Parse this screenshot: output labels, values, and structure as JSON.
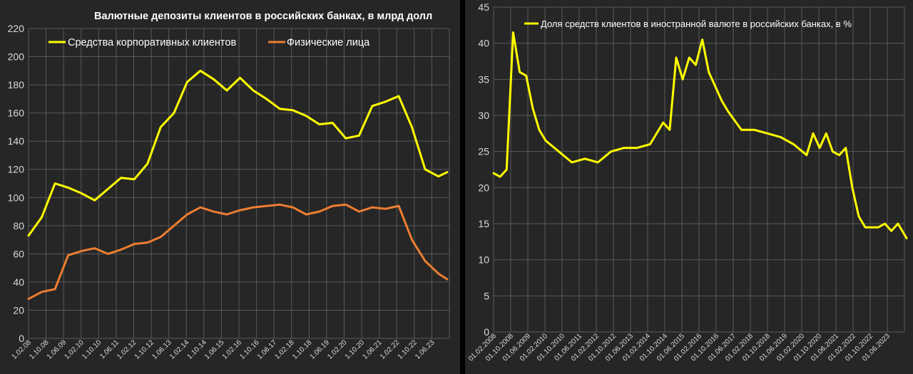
{
  "chart_data": [
    {
      "type": "line",
      "title": "Валютные депозиты клиентов в российских банках, в млрд долл",
      "xlabel": "",
      "ylabel": "",
      "ylim": [
        0,
        220
      ],
      "yticks": [
        0,
        20,
        40,
        60,
        80,
        100,
        120,
        140,
        160,
        180,
        200,
        220
      ],
      "x_tick_labels": [
        "1.02.08",
        "1.10.08",
        "1.06.09",
        "1.02.10",
        "1.10.10",
        "1.06.11",
        "1.02.12",
        "1.10.12",
        "1.06.13",
        "1.02.14",
        "1.10.14",
        "1.06.15",
        "1.02.16",
        "1.10.16",
        "1.06.17",
        "1.02.18",
        "1.10.18",
        "1.06.19",
        "1.02.20",
        "1.10.20",
        "1.06.21",
        "1.02.22",
        "1.10.22",
        "1.06.23"
      ],
      "grid": true,
      "legend_position": "top",
      "colors": {
        "corporate": "#ffff00",
        "individuals": "#ed7d31"
      },
      "x_points": [
        "01.2008",
        "07.2008",
        "01.2009",
        "07.2009",
        "01.2010",
        "07.2010",
        "01.2011",
        "07.2011",
        "01.2012",
        "07.2012",
        "01.2013",
        "07.2013",
        "01.2014",
        "07.2014",
        "01.2015",
        "07.2015",
        "01.2016",
        "07.2016",
        "01.2017",
        "07.2017",
        "01.2018",
        "07.2018",
        "01.2019",
        "07.2019",
        "01.2020",
        "07.2020",
        "01.2021",
        "07.2021",
        "01.2022",
        "07.2022",
        "01.2023",
        "07.2023",
        "11.2023"
      ],
      "series": [
        {
          "name": "Средства корпоративных клиентов",
          "values": [
            73,
            86,
            110,
            107,
            103,
            98,
            106,
            114,
            113,
            124,
            150,
            160,
            182,
            190,
            184,
            176,
            185,
            176,
            170,
            163,
            162,
            158,
            152,
            153,
            142,
            144,
            165,
            168,
            172,
            150,
            120,
            115,
            118
          ]
        },
        {
          "name": "Физические лица",
          "values": [
            28,
            33,
            35,
            59,
            62,
            64,
            60,
            63,
            67,
            68,
            72,
            80,
            88,
            93,
            90,
            88,
            91,
            93,
            94,
            95,
            93,
            88,
            90,
            94,
            95,
            90,
            93,
            92,
            94,
            70,
            55,
            46,
            42
          ]
        }
      ]
    },
    {
      "type": "line",
      "title": "",
      "xlabel": "",
      "ylabel": "",
      "ylim": [
        0,
        45
      ],
      "yticks": [
        0,
        5,
        10,
        15,
        20,
        25,
        30,
        35,
        40,
        45
      ],
      "x_tick_labels": [
        "01.02.2008",
        "01.10.2008",
        "01.06.2009",
        "01.02.2010",
        "01.10.2010",
        "01.06.2011",
        "01.02.2012",
        "01.10.2012",
        "01.06.2013",
        "01.02.2014",
        "01.10.2014",
        "01.06.2015",
        "01.02.2016",
        "01.10.2016",
        "01.06.2017",
        "01.02.2018",
        "01.10.2018",
        "01.06.2019",
        "01.02.2020",
        "01.10.2020",
        "01.06.2021",
        "01.02.2022",
        "01.10.2022",
        "01.06.2023"
      ],
      "grid": true,
      "legend_position": "top",
      "colors": {
        "share": "#ffff00"
      },
      "x_points": [
        "01.2008",
        "04.2008",
        "07.2008",
        "10.2008",
        "01.2009",
        "04.2009",
        "07.2009",
        "10.2009",
        "01.2010",
        "07.2010",
        "01.2011",
        "07.2011",
        "01.2012",
        "07.2012",
        "01.2013",
        "07.2013",
        "01.2014",
        "07.2014",
        "10.2014",
        "01.2015",
        "04.2015",
        "07.2015",
        "10.2015",
        "01.2016",
        "04.2016",
        "07.2016",
        "10.2016",
        "01.2017",
        "07.2017",
        "01.2018",
        "07.2018",
        "01.2019",
        "07.2019",
        "01.2020",
        "04.2020",
        "07.2020",
        "10.2020",
        "01.2021",
        "04.2021",
        "07.2021",
        "10.2021",
        "01.2022",
        "04.2022",
        "07.2022",
        "10.2022",
        "01.2023",
        "04.2023",
        "07.2023",
        "11.2023"
      ],
      "series": [
        {
          "name": "Доля средств клиентов в иностранной валюте в российских банках, в %",
          "values": [
            22,
            21.5,
            22.5,
            41.5,
            36,
            35.5,
            31,
            28,
            26.5,
            25,
            23.5,
            24,
            23.5,
            25,
            25.5,
            25.5,
            26,
            29,
            28,
            38,
            35,
            38,
            37,
            40.5,
            36,
            34,
            32,
            30.5,
            28,
            28,
            27.5,
            27,
            26,
            24.5,
            27.5,
            25.5,
            27.5,
            25,
            24.5,
            25.5,
            20,
            16,
            14.5,
            14.5,
            14.5,
            15,
            14,
            15,
            13
          ]
        }
      ]
    }
  ]
}
